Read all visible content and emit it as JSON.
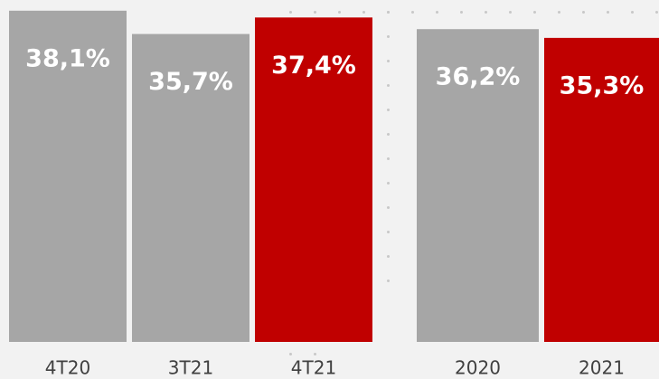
{
  "chart_data": {
    "type": "bar",
    "categories": [
      "4T20",
      "3T21",
      "4T21",
      "2020",
      "2021"
    ],
    "values": [
      38.1,
      35.7,
      37.4,
      36.2,
      35.3
    ],
    "value_labels": [
      "38,1%",
      "35,7%",
      "37,4%",
      "36,2%",
      "35,3%"
    ],
    "colors": [
      "#a6a6a6",
      "#a6a6a6",
      "#c00000",
      "#a6a6a6",
      "#c00000"
    ],
    "ylim": [
      4,
      39.2
    ]
  }
}
